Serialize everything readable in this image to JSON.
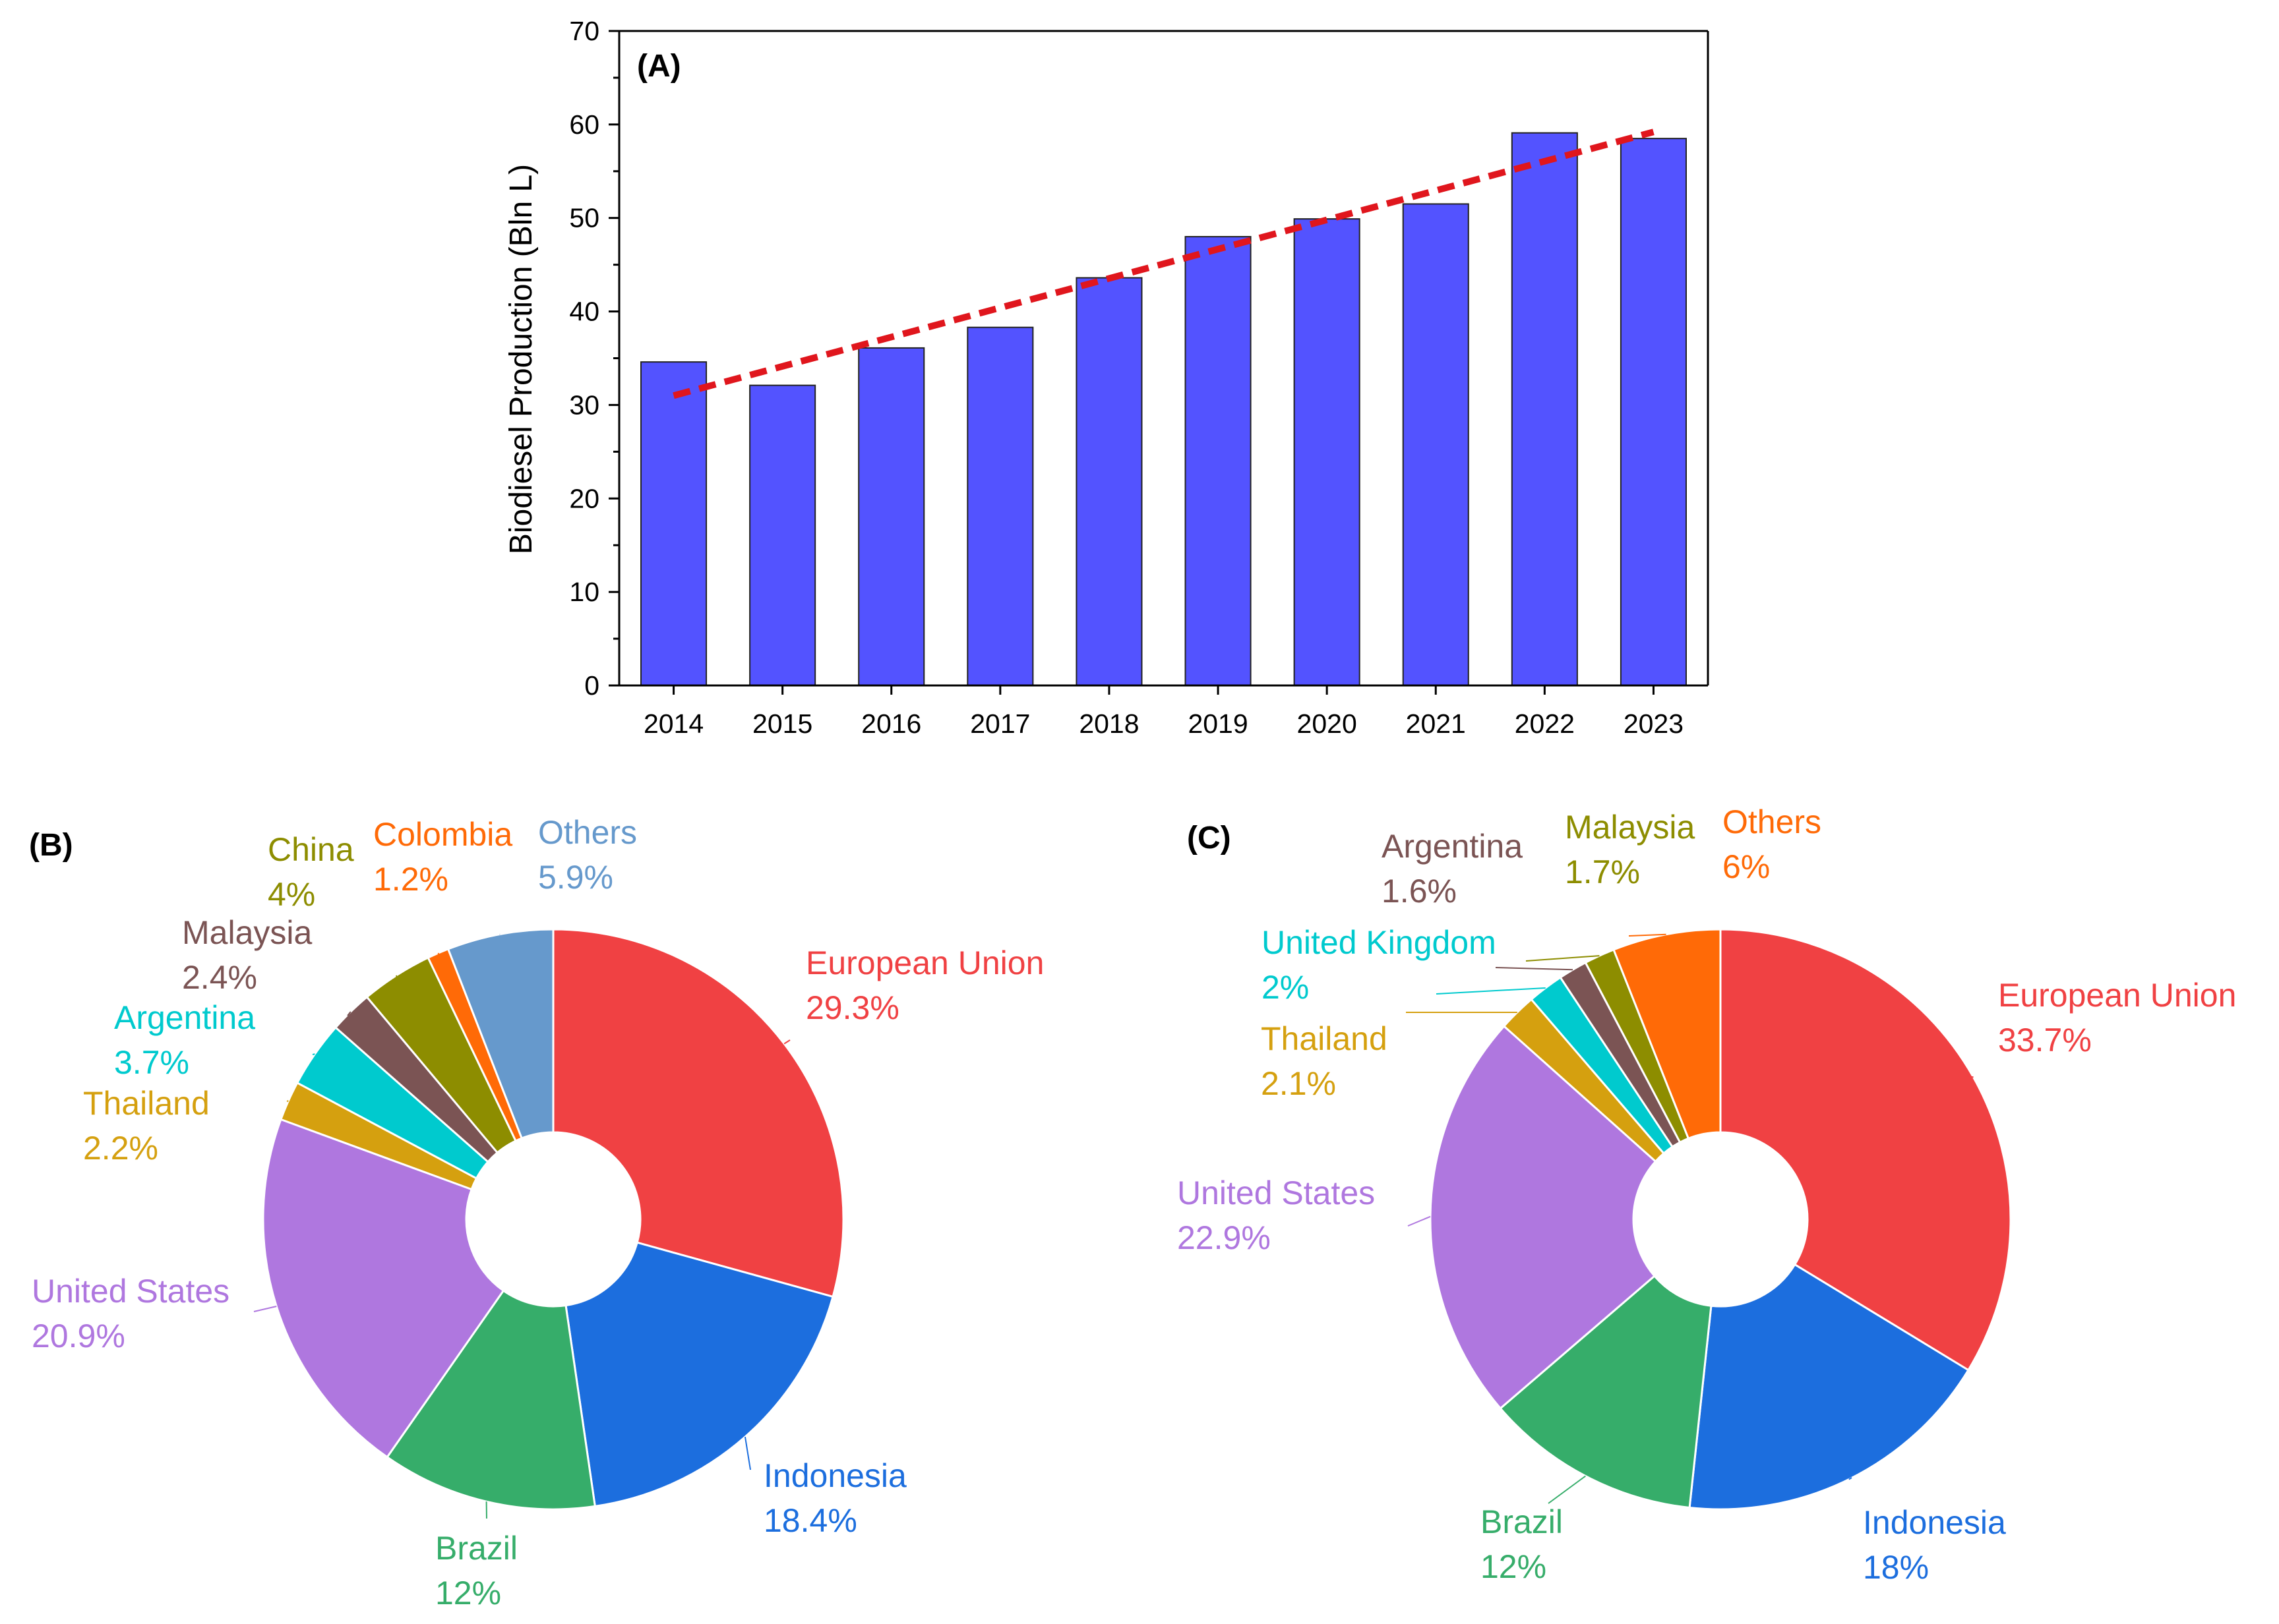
{
  "chart_data": [
    {
      "panel": "(A)",
      "type": "bar",
      "ylabel": "Biodiesel Production (Bln L)",
      "xlabel": "",
      "categories": [
        "2014",
        "2015",
        "2016",
        "2017",
        "2018",
        "2019",
        "2020",
        "2021",
        "2022",
        "2023"
      ],
      "values": [
        34.6,
        32.1,
        36.1,
        38.3,
        43.6,
        48.0,
        49.9,
        51.5,
        59.1,
        58.5
      ],
      "ylim": [
        0,
        70
      ],
      "yticks": [
        0,
        10,
        20,
        30,
        40,
        50,
        60,
        70
      ],
      "bar_color": "#5353FF",
      "trendline": {
        "style": "dashed",
        "color": "#E0161D",
        "start": 31.0,
        "end": 59.2
      }
    },
    {
      "panel": "(B)",
      "type": "pie",
      "style": "donut",
      "slices": [
        {
          "label": "European Union",
          "value": 29.3,
          "text": "29.3%",
          "color": "#F04143"
        },
        {
          "label": "Indonesia",
          "value": 18.4,
          "text": "18.4%",
          "color": "#1C6EDE"
        },
        {
          "label": "Brazil",
          "value": 12,
          "text": "12%",
          "color": "#36AD6A"
        },
        {
          "label": "United States",
          "value": 20.9,
          "text": "20.9%",
          "color": "#AF77DF"
        },
        {
          "label": "Thailand",
          "value": 2.2,
          "text": "2.2%",
          "color": "#D5A00F"
        },
        {
          "label": "Argentina",
          "value": 3.7,
          "text": "3.7%",
          "color": "#00CACE"
        },
        {
          "label": "Malaysia",
          "value": 2.4,
          "text": "2.4%",
          "color": "#7B5454"
        },
        {
          "label": "China",
          "value": 4,
          "text": "4%",
          "color": "#8D8D00"
        },
        {
          "label": "Colombia",
          "value": 1.2,
          "text": "1.2%",
          "color": "#FF6A07"
        },
        {
          "label": "Others",
          "value": 5.9,
          "text": "5.9%",
          "color": "#6699CC"
        }
      ]
    },
    {
      "panel": "(C)",
      "type": "pie",
      "style": "donut",
      "slices": [
        {
          "label": "European Union",
          "value": 33.7,
          "text": "33.7%",
          "color": "#F04143"
        },
        {
          "label": "Indonesia",
          "value": 18,
          "text": "18%",
          "color": "#1C6EDE"
        },
        {
          "label": "Brazil",
          "value": 12,
          "text": "12%",
          "color": "#36AD6A"
        },
        {
          "label": "United States",
          "value": 22.9,
          "text": "22.9%",
          "color": "#AF77DF"
        },
        {
          "label": "Thailand",
          "value": 2.1,
          "text": "2.1%",
          "color": "#D5A00F"
        },
        {
          "label": "United Kingdom",
          "value": 2,
          "text": "2%",
          "color": "#00CACE"
        },
        {
          "label": "Argentina",
          "value": 1.6,
          "text": "1.6%",
          "color": "#7B5454"
        },
        {
          "label": "Malaysia",
          "value": 1.7,
          "text": "1.7%",
          "color": "#8D8D00"
        },
        {
          "label": "Others",
          "value": 6,
          "text": "6%",
          "color": "#FF6A07"
        }
      ]
    }
  ]
}
